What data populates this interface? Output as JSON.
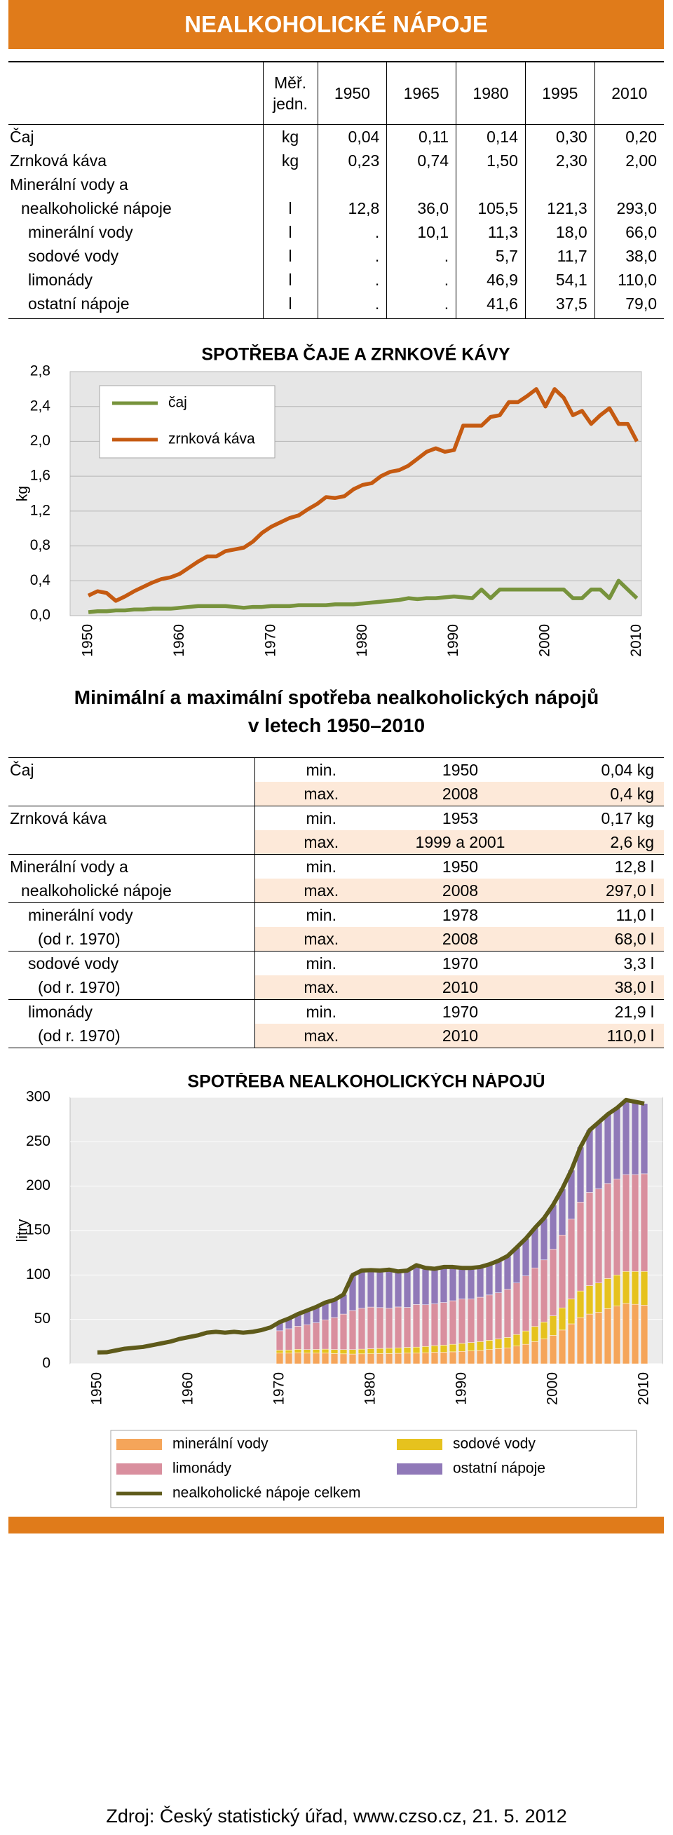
{
  "header": {
    "title": "NEALKOHOLICKÉ NÁPOJE"
  },
  "table1": {
    "header": [
      "Měř. jedn.",
      "1950",
      "1965",
      "1980",
      "1995",
      "2010"
    ],
    "rows": [
      {
        "label": [
          "Čaj"
        ],
        "unit": "kg",
        "values": [
          "0,04",
          "0,11",
          "0,14",
          "0,30",
          "0,20"
        ]
      },
      {
        "label": [
          "Zrnková káva"
        ],
        "unit": "kg",
        "values": [
          "0,23",
          "0,74",
          "1,50",
          "2,30",
          "2,00"
        ]
      },
      {
        "label": [
          "Minerální vody a",
          "nealkoholické nápoje"
        ],
        "unit": "l",
        "values": [
          "12,8",
          "36,0",
          "105,5",
          "121,3",
          "293,0"
        ]
      },
      {
        "label": [
          "minerální vody"
        ],
        "unit": "l",
        "values": [
          ".",
          "10,1",
          "11,3",
          "18,0",
          "66,0"
        ]
      },
      {
        "label": [
          "sodové vody"
        ],
        "unit": "l",
        "values": [
          ".",
          ".",
          "5,7",
          "11,7",
          "38,0"
        ]
      },
      {
        "label": [
          "limonády"
        ],
        "unit": "l",
        "values": [
          ".",
          ".",
          "46,9",
          "54,1",
          "110,0"
        ]
      },
      {
        "label": [
          "ostatní nápoje"
        ],
        "unit": "l",
        "values": [
          ".",
          ".",
          "41,6",
          "37,5",
          "79,0"
        ]
      }
    ]
  },
  "chart_data": [
    {
      "type": "line",
      "title": "SPOTŘEBA ČAJE A ZRNKOVÉ KÁVY",
      "y_label": "kg",
      "x": [
        1950,
        1951,
        1952,
        1953,
        1954,
        1955,
        1956,
        1957,
        1958,
        1959,
        1960,
        1961,
        1962,
        1963,
        1964,
        1965,
        1966,
        1967,
        1968,
        1969,
        1970,
        1971,
        1972,
        1973,
        1974,
        1975,
        1976,
        1977,
        1978,
        1979,
        1980,
        1981,
        1982,
        1983,
        1984,
        1985,
        1986,
        1987,
        1988,
        1989,
        1990,
        1991,
        1992,
        1993,
        1994,
        1995,
        1996,
        1997,
        1998,
        1999,
        2000,
        2001,
        2002,
        2003,
        2004,
        2005,
        2006,
        2007,
        2008,
        2009,
        2010
      ],
      "series": [
        {
          "name": "čaj",
          "color": "#77933c",
          "values": [
            0.04,
            0.05,
            0.05,
            0.06,
            0.06,
            0.07,
            0.07,
            0.08,
            0.08,
            0.08,
            0.09,
            0.1,
            0.11,
            0.11,
            0.11,
            0.11,
            0.1,
            0.09,
            0.1,
            0.1,
            0.11,
            0.11,
            0.11,
            0.12,
            0.12,
            0.12,
            0.12,
            0.13,
            0.13,
            0.13,
            0.14,
            0.15,
            0.16,
            0.17,
            0.18,
            0.2,
            0.19,
            0.2,
            0.2,
            0.21,
            0.22,
            0.21,
            0.2,
            0.3,
            0.2,
            0.3,
            0.3,
            0.3,
            0.3,
            0.3,
            0.3,
            0.3,
            0.3,
            0.2,
            0.2,
            0.3,
            0.3,
            0.2,
            0.4,
            0.3,
            0.2
          ]
        },
        {
          "name": "zrnková káva",
          "color": "#c55a11",
          "values": [
            0.23,
            0.28,
            0.26,
            0.17,
            0.22,
            0.28,
            0.33,
            0.38,
            0.42,
            0.44,
            0.48,
            0.55,
            0.62,
            0.68,
            0.68,
            0.74,
            0.76,
            0.78,
            0.85,
            0.95,
            1.02,
            1.07,
            1.12,
            1.15,
            1.22,
            1.28,
            1.36,
            1.35,
            1.37,
            1.45,
            1.5,
            1.52,
            1.6,
            1.65,
            1.67,
            1.72,
            1.8,
            1.88,
            1.92,
            1.88,
            1.9,
            2.18,
            2.18,
            2.18,
            2.28,
            2.3,
            2.45,
            2.45,
            2.52,
            2.6,
            2.4,
            2.6,
            2.5,
            2.3,
            2.35,
            2.2,
            2.3,
            2.38,
            2.2,
            2.2,
            2.0
          ]
        }
      ],
      "xlim": [
        1948,
        2010.5
      ],
      "xticks": [
        1950,
        1960,
        1970,
        1980,
        1990,
        2000,
        2010
      ],
      "ylim": [
        0,
        2.8
      ],
      "yticks": [
        {
          "value": 0,
          "label": "0,0"
        },
        {
          "value": 0.4,
          "label": "0,4"
        },
        {
          "value": 0.8,
          "label": "0,8"
        },
        {
          "value": 1.2,
          "label": "1,2"
        },
        {
          "value": 1.6,
          "label": "1,6"
        },
        {
          "value": 2.0,
          "label": "2,0"
        },
        {
          "value": 2.4,
          "label": "2,4"
        },
        {
          "value": 2.8,
          "label": "2,8"
        }
      ],
      "grid": true,
      "legend": "upper left"
    },
    {
      "type": "bar",
      "stacked": true,
      "title": "SPOTŘEBA NEALKOHOLICKÝCH NÁPOJŮ",
      "y_label": "litry",
      "x": [
        1950,
        1951,
        1952,
        1953,
        1954,
        1955,
        1956,
        1957,
        1958,
        1959,
        1960,
        1961,
        1962,
        1963,
        1964,
        1965,
        1966,
        1967,
        1968,
        1969,
        1970,
        1971,
        1972,
        1973,
        1974,
        1975,
        1976,
        1977,
        1978,
        1979,
        1980,
        1981,
        1982,
        1983,
        1984,
        1985,
        1986,
        1987,
        1988,
        1989,
        1990,
        1991,
        1992,
        1993,
        1994,
        1995,
        1996,
        1997,
        1998,
        1999,
        2000,
        2001,
        2002,
        2003,
        2004,
        2005,
        2006,
        2007,
        2008,
        2009,
        2010
      ],
      "series": [
        {
          "name": "minerální vody",
          "color": "#f5a55a",
          "values": [
            null,
            null,
            null,
            null,
            null,
            null,
            null,
            null,
            null,
            null,
            null,
            null,
            null,
            null,
            null,
            null,
            null,
            null,
            null,
            null,
            12,
            12,
            12.5,
            12,
            12,
            12,
            11.5,
            11.2,
            11.0,
            11.2,
            11.3,
            11.5,
            11.5,
            11.8,
            12,
            12,
            12.5,
            13,
            13,
            13.5,
            14,
            14.5,
            15,
            16,
            17,
            18,
            20,
            22,
            25,
            28,
            32,
            38,
            45,
            52,
            56,
            58,
            62,
            65,
            68,
            67,
            66
          ]
        },
        {
          "name": "sodové vody",
          "color": "#e6c21e",
          "values": [
            null,
            null,
            null,
            null,
            null,
            null,
            null,
            null,
            null,
            null,
            null,
            null,
            null,
            null,
            null,
            null,
            null,
            null,
            null,
            null,
            3.3,
            3.5,
            3.8,
            4,
            4.2,
            4.5,
            4.6,
            4.8,
            5,
            5.3,
            5.7,
            5.8,
            6,
            6.2,
            6.5,
            6.8,
            7,
            7.5,
            8,
            8.5,
            9,
            9.5,
            10,
            10.5,
            11,
            11.7,
            13,
            15,
            17,
            19,
            22,
            25,
            28,
            30,
            32,
            33,
            34,
            35,
            36,
            37,
            38
          ]
        },
        {
          "name": "limonády",
          "color": "#d98f9e",
          "values": [
            null,
            null,
            null,
            null,
            null,
            null,
            null,
            null,
            null,
            null,
            null,
            null,
            null,
            null,
            null,
            null,
            null,
            null,
            null,
            null,
            21.9,
            24,
            26,
            28,
            30,
            33,
            36,
            40,
            44,
            46,
            46.9,
            46,
            45,
            46,
            45,
            48,
            47,
            47,
            48,
            49,
            50,
            49,
            50,
            51,
            52,
            54.1,
            58,
            62,
            66,
            70,
            75,
            82,
            90,
            100,
            105,
            106,
            107,
            108,
            109,
            109,
            110
          ]
        },
        {
          "name": "ostatní nápoje",
          "color": "#9079b8",
          "values": [
            null,
            null,
            null,
            null,
            null,
            null,
            null,
            null,
            null,
            null,
            null,
            null,
            null,
            null,
            null,
            null,
            null,
            null,
            null,
            null,
            10,
            12,
            14,
            16,
            18,
            20,
            20,
            22,
            40,
            42,
            41.6,
            42,
            43,
            40,
            42,
            44,
            42,
            40,
            40,
            38,
            35,
            35,
            34,
            35,
            36,
            37.5,
            40,
            42,
            45,
            47,
            50,
            52,
            55,
            62,
            70,
            75,
            78,
            80,
            84,
            82,
            79
          ]
        },
        {
          "name": "nealkoholické nápoje celkem",
          "type": "line",
          "color": "#5e5a1a",
          "values": [
            12.8,
            13,
            15,
            17,
            18,
            19,
            21,
            23,
            25,
            28,
            30,
            32,
            35,
            36,
            35,
            36,
            35,
            36,
            38,
            41,
            47,
            51,
            56,
            60,
            64,
            69,
            72,
            78,
            100,
            105,
            105.5,
            105,
            106,
            104,
            105,
            111,
            108,
            107,
            109,
            109,
            108,
            108,
            109,
            112,
            116,
            121.3,
            131,
            141,
            153,
            164,
            179,
            197,
            218,
            244,
            263,
            272,
            281,
            288,
            297,
            295,
            293
          ]
        }
      ],
      "xlim": [
        1947,
        2012
      ],
      "xticks": [
        1950,
        1960,
        1970,
        1980,
        1990,
        2000,
        2010
      ],
      "ylim": [
        0,
        300
      ],
      "yticks": [
        0,
        50,
        100,
        150,
        200,
        250,
        300
      ],
      "grid": true,
      "legend": "bottom"
    }
  ],
  "table2": {
    "title": [
      "Minimální a maximální spotřeba nealkoholických nápojů",
      "v letech 1950–2010"
    ],
    "groups": [
      {
        "label": [
          "Čaj"
        ],
        "rows": [
          [
            "min.",
            "1950",
            "0,04 kg"
          ],
          [
            "max.",
            "2008",
            "0,4 kg"
          ]
        ]
      },
      {
        "label": [
          "Zrnková káva"
        ],
        "rows": [
          [
            "min.",
            "1953",
            "0,17 kg"
          ],
          [
            "max.",
            "1999 a 2001",
            "2,6 kg"
          ]
        ]
      },
      {
        "label": [
          "Minerální vody a",
          "nealkoholické nápoje"
        ],
        "rows": [
          [
            "min.",
            "1950",
            "12,8 l"
          ],
          [
            "max.",
            "2008",
            "297,0 l"
          ]
        ]
      },
      {
        "label": [
          "minerální vody",
          "(od r. 1970)"
        ],
        "rows": [
          [
            "min.",
            "1978",
            "11,0 l"
          ],
          [
            "max.",
            "2008",
            "68,0 l"
          ]
        ]
      },
      {
        "label": [
          "sodové vody",
          "(od r. 1970)"
        ],
        "rows": [
          [
            "min.",
            "1970",
            "3,3 l"
          ],
          [
            "max.",
            "2010",
            "38,0 l"
          ]
        ]
      },
      {
        "label": [
          "limonády",
          "(od r. 1970)"
        ],
        "rows": [
          [
            "min.",
            "1970",
            "21,9 l"
          ],
          [
            "max.",
            "2010",
            "110,0 l"
          ]
        ]
      }
    ]
  },
  "footer": {
    "source": "Zdroj: Český statistický úřad, www.czso.cz, 21. 5. 2012"
  }
}
